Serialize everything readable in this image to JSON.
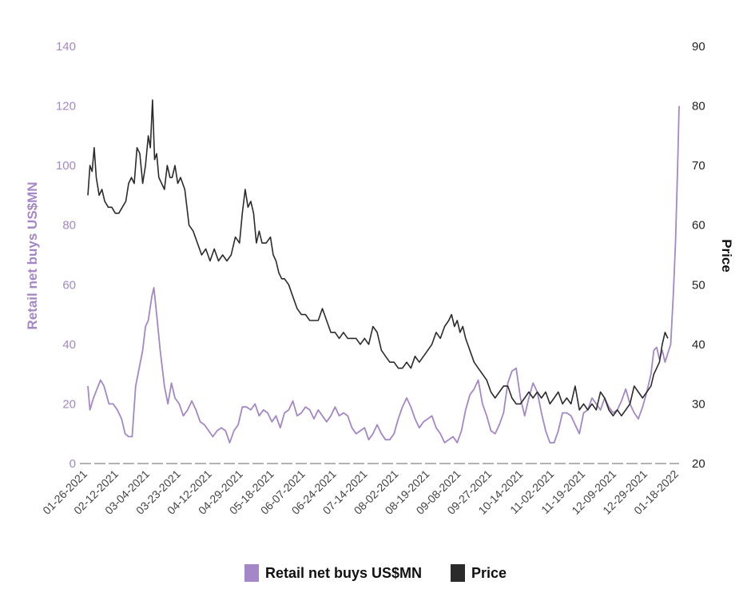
{
  "chart_data": {
    "type": "line",
    "title": "",
    "ylabel": "Retail net buys US$MN",
    "y2label": "Price",
    "ylim": [
      0,
      140
    ],
    "y2lim": [
      20,
      90
    ],
    "yticks": [
      "0",
      "20",
      "40",
      "60",
      "80",
      "100",
      "120",
      "140"
    ],
    "y2ticks": [
      "20",
      "30",
      "40",
      "50",
      "60",
      "70",
      "80",
      "90"
    ],
    "xticks": [
      "01-26-2021",
      "02-12-2021",
      "03-04-2021",
      "03-23-2021",
      "04-12-2021",
      "04-29-2021",
      "05-18-2021",
      "06-07-2021",
      "06-24-2021",
      "07-14-2021",
      "08-02-2021",
      "08-19-2021",
      "09-08-2021",
      "09-27-2021",
      "10-14-2021",
      "11-02-2021",
      "11-19-2021",
      "12-09-2021",
      "12-29-2021",
      "01-18-2022"
    ],
    "colors": {
      "retail": "#a487c6",
      "price": "#2b2b2b",
      "baseline": "#9a9a9a"
    },
    "legend_position": "bottom",
    "series": [
      {
        "name": "Retail net buys US$MN",
        "axis": "left",
        "points": [
          [
            0,
            26
          ],
          [
            0.3,
            18
          ],
          [
            0.8,
            22
          ],
          [
            1.3,
            25
          ],
          [
            1.8,
            28
          ],
          [
            2.3,
            26
          ],
          [
            3,
            20
          ],
          [
            3.6,
            20
          ],
          [
            4.2,
            18
          ],
          [
            4.8,
            15
          ],
          [
            5.3,
            10
          ],
          [
            5.8,
            9
          ],
          [
            6.3,
            9
          ],
          [
            6.8,
            26
          ],
          [
            7.3,
            32
          ],
          [
            7.8,
            38
          ],
          [
            8.2,
            46
          ],
          [
            8.6,
            48
          ],
          [
            9.1,
            56
          ],
          [
            9.4,
            59
          ],
          [
            9.8,
            50
          ],
          [
            10.3,
            38
          ],
          [
            10.9,
            26
          ],
          [
            11.4,
            20
          ],
          [
            11.9,
            27
          ],
          [
            12.4,
            22
          ],
          [
            13.0,
            20
          ],
          [
            13.6,
            16
          ],
          [
            14.2,
            18
          ],
          [
            14.8,
            21
          ],
          [
            15.4,
            18
          ],
          [
            16.0,
            14
          ],
          [
            16.6,
            13
          ],
          [
            17.2,
            11
          ],
          [
            17.8,
            9
          ],
          [
            18.4,
            11
          ],
          [
            19.0,
            12
          ],
          [
            19.6,
            11
          ],
          [
            20.2,
            7
          ],
          [
            20.8,
            11
          ],
          [
            21.4,
            13
          ],
          [
            22.0,
            19
          ],
          [
            22.6,
            19
          ],
          [
            23.2,
            18
          ],
          [
            23.8,
            20
          ],
          [
            24.4,
            16
          ],
          [
            25.0,
            18
          ],
          [
            25.6,
            17
          ],
          [
            26.2,
            14
          ],
          [
            26.8,
            16
          ],
          [
            27.4,
            12
          ],
          [
            28.0,
            17
          ],
          [
            28.6,
            18
          ],
          [
            29.2,
            21
          ],
          [
            29.8,
            16
          ],
          [
            30.4,
            17
          ],
          [
            31.0,
            19
          ],
          [
            31.6,
            18
          ],
          [
            32.2,
            15
          ],
          [
            32.8,
            18
          ],
          [
            33.4,
            16
          ],
          [
            34.0,
            14
          ],
          [
            34.6,
            16
          ],
          [
            35.2,
            19
          ],
          [
            35.8,
            16
          ],
          [
            36.4,
            17
          ],
          [
            37.0,
            16
          ],
          [
            37.6,
            12
          ],
          [
            38.2,
            10
          ],
          [
            38.8,
            11
          ],
          [
            39.4,
            12
          ],
          [
            40.0,
            8
          ],
          [
            40.6,
            10
          ],
          [
            41.2,
            13
          ],
          [
            41.8,
            10
          ],
          [
            42.4,
            8
          ],
          [
            43.0,
            8
          ],
          [
            43.6,
            10
          ],
          [
            44.2,
            15
          ],
          [
            44.8,
            19
          ],
          [
            45.4,
            22
          ],
          [
            46.0,
            19
          ],
          [
            46.6,
            15
          ],
          [
            47.2,
            12
          ],
          [
            47.8,
            14
          ],
          [
            48.4,
            15
          ],
          [
            49.0,
            16
          ],
          [
            49.6,
            12
          ],
          [
            50.2,
            10
          ],
          [
            50.8,
            7
          ],
          [
            51.4,
            8
          ],
          [
            52.0,
            9
          ],
          [
            52.6,
            7
          ],
          [
            53.2,
            11
          ],
          [
            53.8,
            18
          ],
          [
            54.4,
            23
          ],
          [
            55.0,
            25
          ],
          [
            55.6,
            28
          ],
          [
            56.2,
            20
          ],
          [
            56.8,
            16
          ],
          [
            57.4,
            11
          ],
          [
            58.0,
            10
          ],
          [
            58.6,
            13
          ],
          [
            59.2,
            17
          ],
          [
            59.8,
            27
          ],
          [
            60.4,
            31
          ],
          [
            61.0,
            32
          ],
          [
            61.6,
            22
          ],
          [
            62.2,
            16
          ],
          [
            62.8,
            22
          ],
          [
            63.4,
            27
          ],
          [
            64.0,
            24
          ],
          [
            64.6,
            17
          ],
          [
            65.2,
            11
          ],
          [
            65.8,
            7
          ],
          [
            66.4,
            7
          ],
          [
            67.0,
            11
          ],
          [
            67.6,
            17
          ],
          [
            68.2,
            17
          ],
          [
            68.8,
            16
          ],
          [
            69.4,
            13
          ],
          [
            70.0,
            10
          ],
          [
            70.6,
            17
          ],
          [
            71.2,
            18
          ],
          [
            71.8,
            22
          ],
          [
            72.4,
            20
          ],
          [
            73.0,
            18
          ],
          [
            73.6,
            22
          ],
          [
            74.2,
            19
          ],
          [
            74.8,
            17
          ],
          [
            75.4,
            18
          ],
          [
            76.0,
            21
          ],
          [
            76.6,
            25
          ],
          [
            77.2,
            20
          ],
          [
            77.8,
            17
          ],
          [
            78.4,
            15
          ],
          [
            79.0,
            19
          ],
          [
            79.6,
            24
          ],
          [
            80.2,
            30
          ],
          [
            80.6,
            38
          ],
          [
            81.0,
            39
          ],
          [
            81.4,
            35
          ],
          [
            81.8,
            38
          ],
          [
            82.2,
            34
          ],
          [
            82.6,
            37
          ],
          [
            83.0,
            40
          ],
          [
            83.4,
            58
          ],
          [
            83.7,
            75
          ],
          [
            84.0,
            100
          ],
          [
            84.2,
            120
          ]
        ]
      },
      {
        "name": "Price",
        "axis": "right",
        "points": [
          [
            0,
            65
          ],
          [
            0.3,
            70
          ],
          [
            0.6,
            69
          ],
          [
            0.9,
            73
          ],
          [
            1.2,
            68
          ],
          [
            1.6,
            65
          ],
          [
            2.0,
            66
          ],
          [
            2.4,
            64
          ],
          [
            2.9,
            63
          ],
          [
            3.4,
            63
          ],
          [
            3.9,
            62
          ],
          [
            4.4,
            62
          ],
          [
            4.9,
            63
          ],
          [
            5.4,
            64
          ],
          [
            5.8,
            67
          ],
          [
            6.2,
            68
          ],
          [
            6.6,
            67
          ],
          [
            7.0,
            73
          ],
          [
            7.4,
            72
          ],
          [
            7.8,
            67
          ],
          [
            8.2,
            70
          ],
          [
            8.6,
            75
          ],
          [
            8.9,
            73
          ],
          [
            9.2,
            81
          ],
          [
            9.5,
            71
          ],
          [
            9.8,
            72
          ],
          [
            10.1,
            68
          ],
          [
            10.5,
            67
          ],
          [
            10.9,
            66
          ],
          [
            11.3,
            70
          ],
          [
            11.7,
            68
          ],
          [
            12.0,
            68
          ],
          [
            12.4,
            70
          ],
          [
            12.8,
            67
          ],
          [
            13.2,
            68
          ],
          [
            13.8,
            66
          ],
          [
            14.4,
            60
          ],
          [
            15.0,
            59
          ],
          [
            15.6,
            57
          ],
          [
            16.2,
            55
          ],
          [
            16.8,
            56
          ],
          [
            17.4,
            54
          ],
          [
            18.0,
            56
          ],
          [
            18.6,
            54
          ],
          [
            19.2,
            55
          ],
          [
            19.8,
            54
          ],
          [
            20.4,
            55
          ],
          [
            21.0,
            58
          ],
          [
            21.6,
            57
          ],
          [
            22.0,
            62
          ],
          [
            22.4,
            66
          ],
          [
            22.8,
            63
          ],
          [
            23.2,
            64
          ],
          [
            23.6,
            62
          ],
          [
            24.0,
            57
          ],
          [
            24.4,
            59
          ],
          [
            24.8,
            57
          ],
          [
            25.4,
            57
          ],
          [
            26.0,
            58
          ],
          [
            26.4,
            55
          ],
          [
            26.8,
            54
          ],
          [
            27.2,
            52
          ],
          [
            27.6,
            51
          ],
          [
            28.0,
            51
          ],
          [
            28.6,
            50
          ],
          [
            29.2,
            48
          ],
          [
            29.8,
            46
          ],
          [
            30.4,
            45
          ],
          [
            31.0,
            45
          ],
          [
            31.6,
            44
          ],
          [
            32.2,
            44
          ],
          [
            32.8,
            44
          ],
          [
            33.4,
            46
          ],
          [
            34.0,
            44
          ],
          [
            34.6,
            42
          ],
          [
            35.2,
            42
          ],
          [
            35.8,
            41
          ],
          [
            36.4,
            42
          ],
          [
            37.0,
            41
          ],
          [
            37.6,
            41
          ],
          [
            38.2,
            41
          ],
          [
            38.8,
            40
          ],
          [
            39.4,
            41
          ],
          [
            40.0,
            40
          ],
          [
            40.6,
            43
          ],
          [
            41.2,
            42
          ],
          [
            41.8,
            39
          ],
          [
            42.4,
            38
          ],
          [
            43.0,
            37
          ],
          [
            43.6,
            37
          ],
          [
            44.2,
            36
          ],
          [
            44.8,
            36
          ],
          [
            45.4,
            37
          ],
          [
            46.0,
            36
          ],
          [
            46.6,
            38
          ],
          [
            47.2,
            37
          ],
          [
            47.8,
            38
          ],
          [
            48.4,
            39
          ],
          [
            49.0,
            40
          ],
          [
            49.6,
            42
          ],
          [
            50.2,
            41
          ],
          [
            50.8,
            43
          ],
          [
            51.4,
            44
          ],
          [
            51.8,
            45
          ],
          [
            52.2,
            43
          ],
          [
            52.6,
            44
          ],
          [
            53.0,
            42
          ],
          [
            53.4,
            43
          ],
          [
            53.8,
            41
          ],
          [
            54.4,
            39
          ],
          [
            55.0,
            37
          ],
          [
            55.6,
            36
          ],
          [
            56.2,
            35
          ],
          [
            56.8,
            34
          ],
          [
            57.4,
            32
          ],
          [
            58.0,
            31
          ],
          [
            58.6,
            32
          ],
          [
            59.2,
            33
          ],
          [
            59.8,
            33
          ],
          [
            60.4,
            31
          ],
          [
            61.0,
            30
          ],
          [
            61.6,
            30
          ],
          [
            62.2,
            31
          ],
          [
            62.8,
            32
          ],
          [
            63.4,
            31
          ],
          [
            64.0,
            32
          ],
          [
            64.6,
            31
          ],
          [
            65.2,
            32
          ],
          [
            65.8,
            30
          ],
          [
            66.4,
            31
          ],
          [
            67.0,
            32
          ],
          [
            67.6,
            30
          ],
          [
            68.2,
            31
          ],
          [
            68.8,
            30
          ],
          [
            69.4,
            33
          ],
          [
            70.0,
            29
          ],
          [
            70.6,
            30
          ],
          [
            71.2,
            29
          ],
          [
            71.8,
            30
          ],
          [
            72.4,
            29
          ],
          [
            73.0,
            32
          ],
          [
            73.6,
            31
          ],
          [
            74.2,
            29
          ],
          [
            74.8,
            28
          ],
          [
            75.4,
            29
          ],
          [
            76.0,
            28
          ],
          [
            76.6,
            29
          ],
          [
            77.2,
            30
          ],
          [
            77.8,
            33
          ],
          [
            78.4,
            32
          ],
          [
            79.0,
            31
          ],
          [
            79.6,
            32
          ],
          [
            80.2,
            33
          ],
          [
            80.6,
            35
          ],
          [
            81.0,
            36
          ],
          [
            81.4,
            37
          ],
          [
            81.8,
            40
          ],
          [
            82.2,
            42
          ],
          [
            82.6,
            41
          ]
        ]
      }
    ]
  }
}
